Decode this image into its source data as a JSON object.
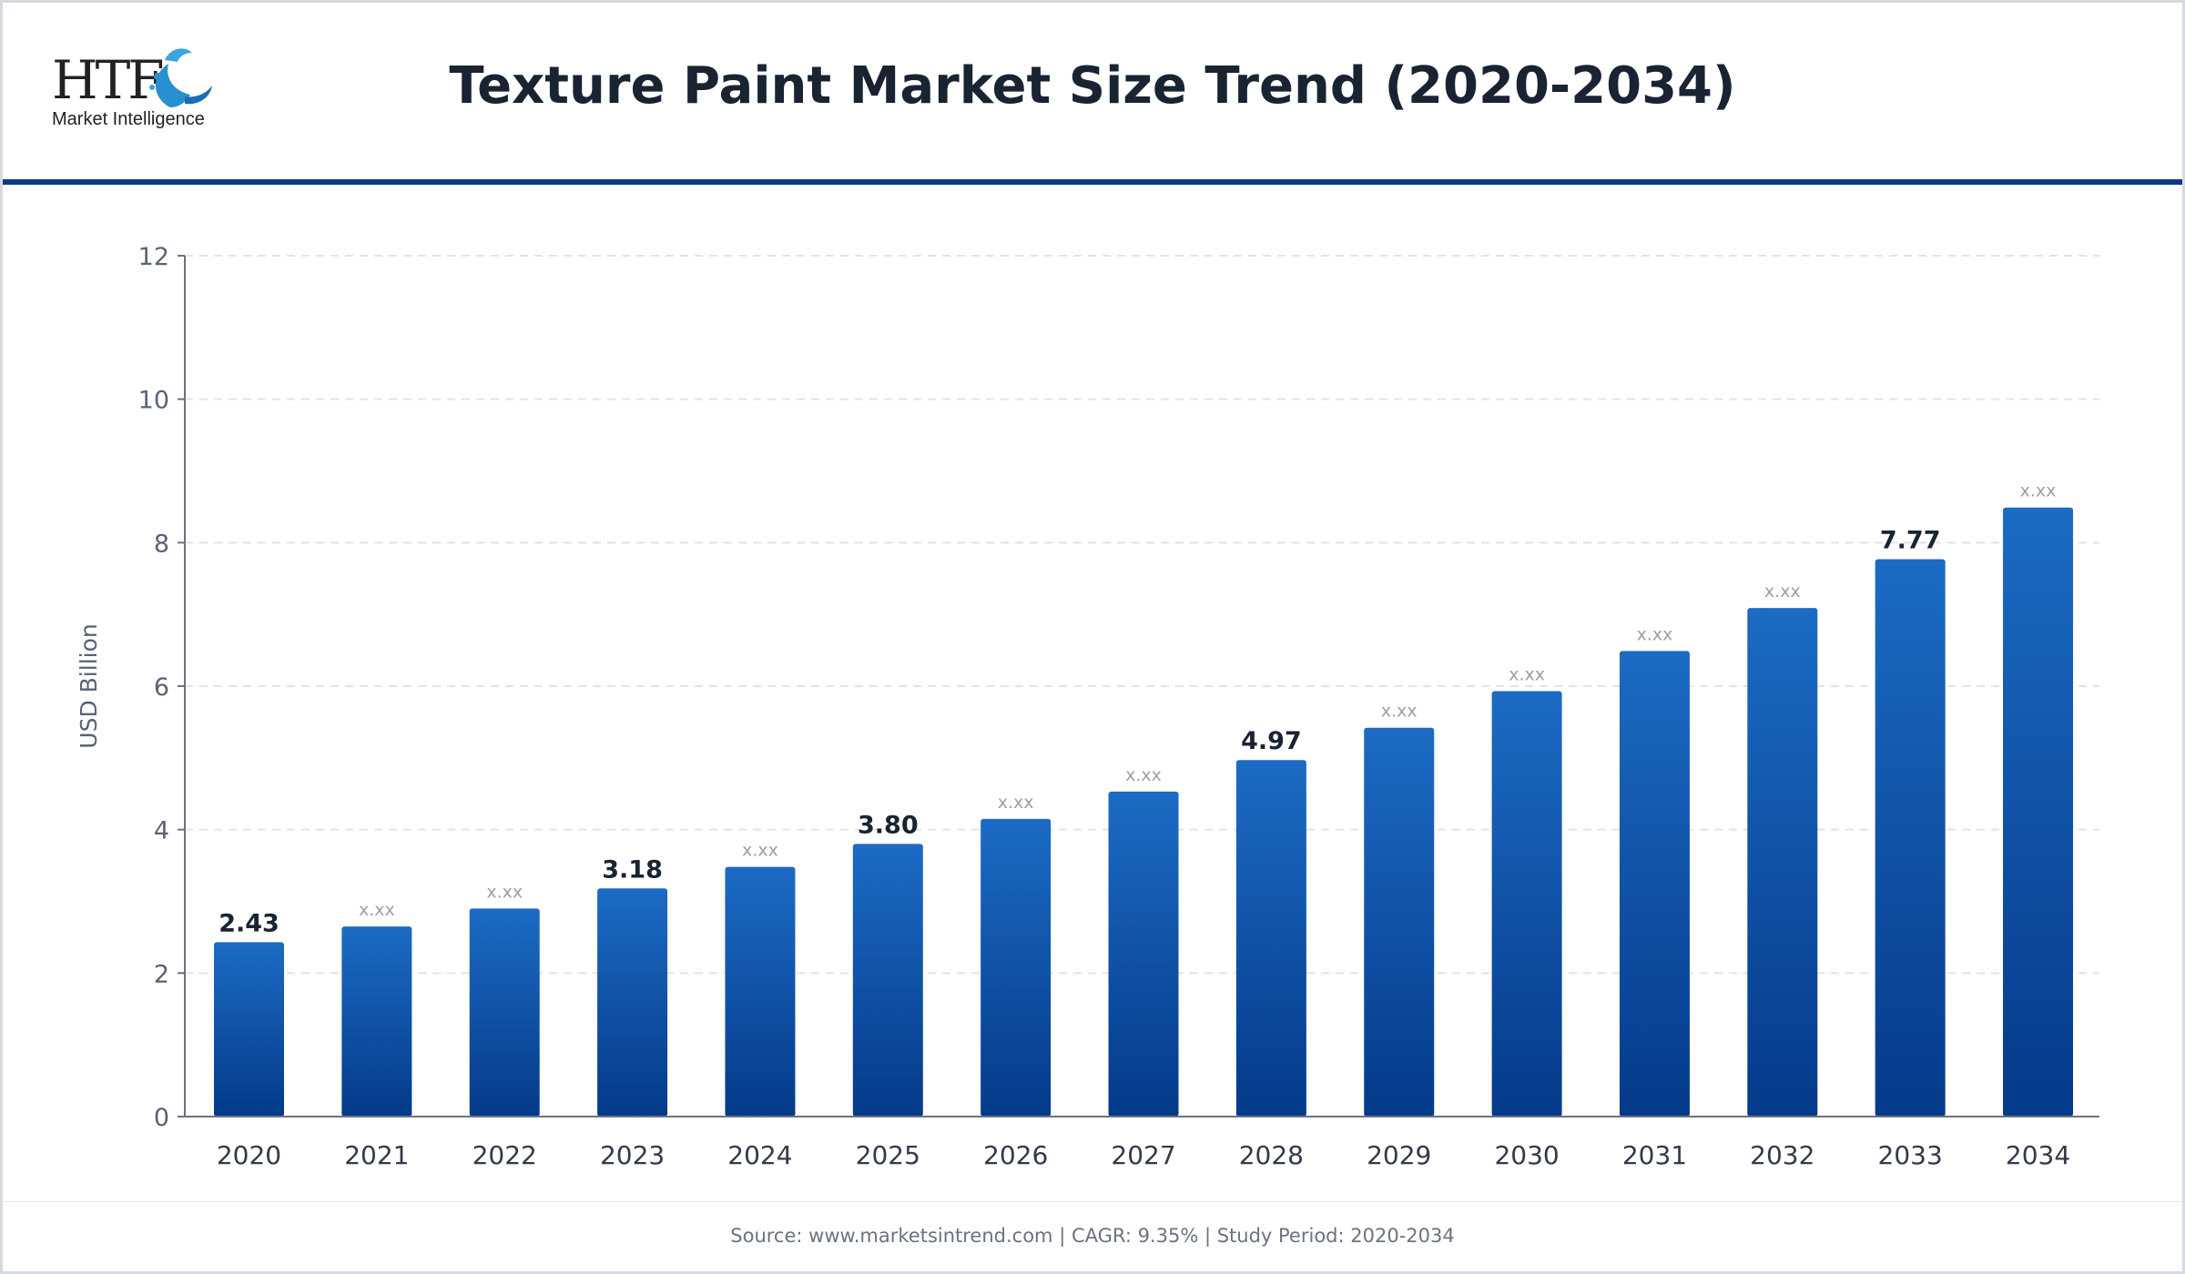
{
  "header": {
    "logo_letters": "HTF",
    "logo_subtitle": "Market Intelligence",
    "title": "Texture Paint Market Size Trend (2020-2034)"
  },
  "colors": {
    "bar_top": "#1c6bc4",
    "bar_bottom": "#043a8a",
    "header_rule": "#0d3b82",
    "title": "#1a2332",
    "axis_text": "#5a6275",
    "grid": "#e1e4ea"
  },
  "chart_data": {
    "type": "bar",
    "title": "Texture Paint Market Size Trend (2020-2034)",
    "xlabel": "",
    "ylabel": "USD Billion",
    "ylim": [
      0,
      12
    ],
    "yticks": [
      0,
      2,
      4,
      6,
      8,
      10,
      12
    ],
    "grid": true,
    "categories": [
      "2020",
      "2021",
      "2022",
      "2023",
      "2024",
      "2025",
      "2026",
      "2027",
      "2028",
      "2029",
      "2030",
      "2031",
      "2032",
      "2033",
      "2034"
    ],
    "values": [
      2.43,
      2.65,
      2.9,
      3.18,
      3.48,
      3.8,
      4.15,
      4.53,
      4.97,
      5.42,
      5.93,
      6.49,
      7.09,
      7.77,
      8.49
    ],
    "labels": [
      "2.43",
      "x.xx",
      "x.xx",
      "3.18",
      "x.xx",
      "3.80",
      "x.xx",
      "x.xx",
      "4.97",
      "x.xx",
      "x.xx",
      "x.xx",
      "x.xx",
      "7.77",
      "x.xx"
    ],
    "highlighted": [
      true,
      false,
      false,
      true,
      false,
      true,
      false,
      false,
      true,
      false,
      false,
      false,
      false,
      true,
      false
    ]
  },
  "footer": {
    "text": "Source: www.marketsintrend.com  |  CAGR: 9.35%  |  Study Period: 2020-2034"
  }
}
